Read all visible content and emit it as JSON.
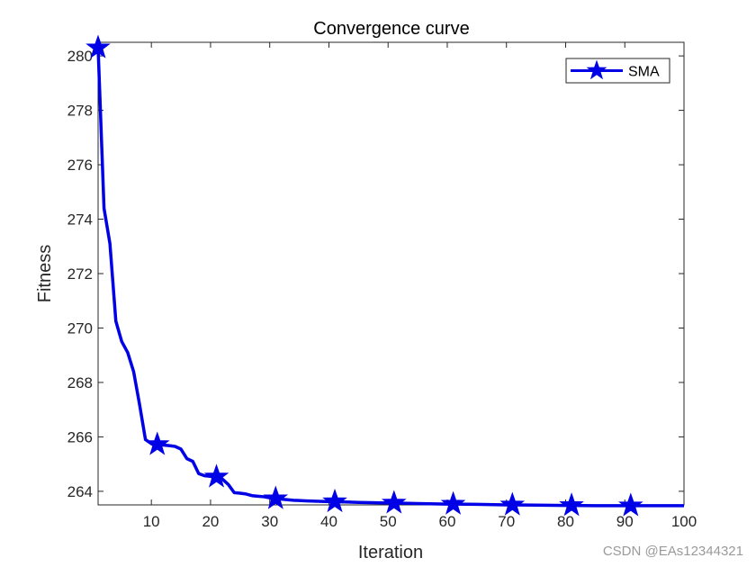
{
  "chart_data": {
    "type": "line",
    "title": "Convergence curve",
    "xlabel": "Iteration",
    "ylabel": "Fitness",
    "xlim": [
      1,
      100
    ],
    "ylim": [
      263.5,
      280.5
    ],
    "xticks": [
      10,
      20,
      30,
      40,
      50,
      60,
      70,
      80,
      90,
      100
    ],
    "yticks": [
      264,
      266,
      268,
      270,
      272,
      274,
      276,
      278,
      280
    ],
    "grid": false,
    "legend_position": "top-right",
    "series": [
      {
        "name": "SMA",
        "color": "#0000e6",
        "marker": "star",
        "marker_x": [
          1,
          11,
          21,
          31,
          41,
          51,
          61,
          71,
          81,
          91
        ],
        "x": [
          1,
          2,
          3,
          4,
          5,
          6,
          7,
          8,
          9,
          10,
          11,
          12,
          13,
          14,
          15,
          16,
          17,
          18,
          19,
          20,
          21,
          22,
          23,
          24,
          25,
          26,
          27,
          28,
          29,
          30,
          31,
          32,
          33,
          34,
          35,
          36,
          40,
          41,
          45,
          50,
          51,
          55,
          60,
          61,
          65,
          70,
          71,
          75,
          80,
          81,
          85,
          90,
          91,
          95,
          100
        ],
        "values": [
          280.3,
          274.4,
          273.1,
          270.25,
          269.5,
          269.1,
          268.4,
          267.2,
          265.9,
          265.75,
          265.72,
          265.7,
          265.68,
          265.65,
          265.55,
          265.2,
          265.1,
          264.65,
          264.57,
          264.55,
          264.53,
          264.45,
          264.25,
          263.95,
          263.93,
          263.9,
          263.84,
          263.82,
          263.8,
          263.76,
          263.73,
          263.71,
          263.69,
          263.67,
          263.66,
          263.65,
          263.62,
          263.62,
          263.59,
          263.57,
          263.57,
          263.55,
          263.53,
          263.53,
          263.52,
          263.5,
          263.5,
          263.49,
          263.48,
          263.48,
          263.47,
          263.47,
          263.47,
          263.47,
          263.47
        ]
      }
    ]
  },
  "watermark": "CSDN @EAs12344321"
}
